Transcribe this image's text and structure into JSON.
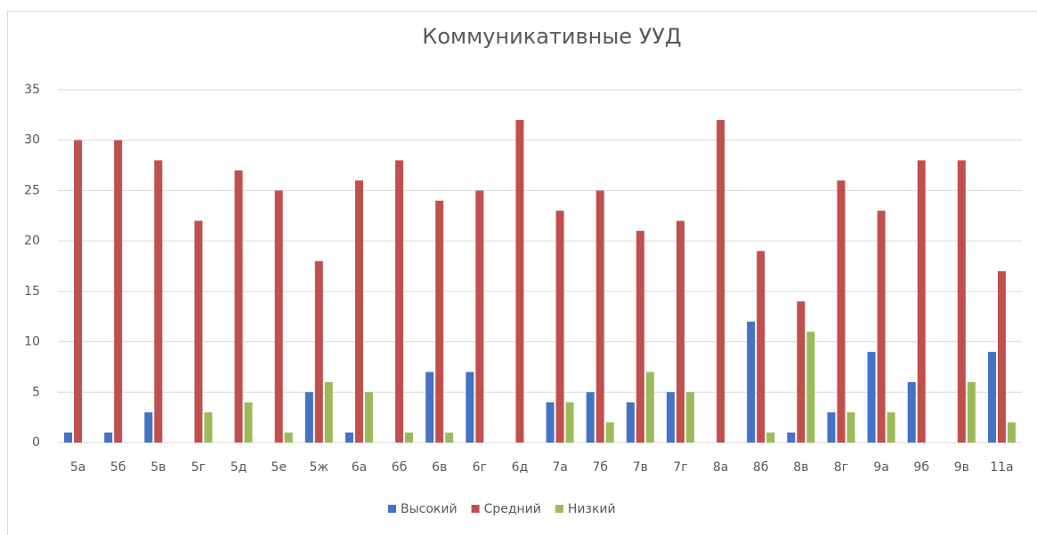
{
  "chart_data": {
    "type": "bar",
    "title": "Коммуникативные УУД",
    "categories": [
      "5а",
      "5б",
      "5в",
      "5г",
      "5д",
      "5е",
      "5ж",
      "6а",
      "6б",
      "6в",
      "6г",
      "6д",
      "7а",
      "7б",
      "7в",
      "7г",
      "8а",
      "8б",
      "8в",
      "8г",
      "9а",
      "9б",
      "9в",
      "11а"
    ],
    "series": [
      {
        "name": "Высокий",
        "color": "#4472c4",
        "values": [
          1,
          1,
          3,
          0,
          0,
          0,
          5,
          1,
          0,
          7,
          7,
          0,
          4,
          5,
          4,
          5,
          0,
          12,
          1,
          3,
          9,
          6,
          0,
          9
        ]
      },
      {
        "name": "Средний",
        "color": "#c0504d",
        "values": [
          30,
          30,
          28,
          22,
          27,
          25,
          18,
          26,
          28,
          24,
          25,
          32,
          23,
          25,
          21,
          22,
          32,
          19,
          14,
          26,
          23,
          28,
          28,
          17
        ]
      },
      {
        "name": "Низкий",
        "color": "#9bbb59",
        "values": [
          0,
          0,
          0,
          3,
          4,
          1,
          6,
          5,
          1,
          1,
          0,
          0,
          4,
          2,
          7,
          5,
          0,
          1,
          11,
          3,
          3,
          0,
          6,
          2
        ]
      }
    ],
    "ylim": [
      0,
      35
    ],
    "yticks": [
      0,
      5,
      10,
      15,
      20,
      25,
      30,
      35
    ],
    "grid": true,
    "legend": "bottom"
  }
}
